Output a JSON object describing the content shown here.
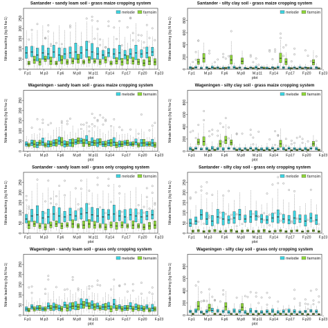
{
  "colors": {
    "melodie": "#3dd4e0",
    "farmsim": "#8ed63a",
    "outlier": "#666666",
    "axis": "#222222"
  },
  "legend": {
    "melodie": "melodie",
    "farmsim": "farmsim"
  },
  "chart_data": [
    {
      "type": "box",
      "title": "Santander - sandy loam soil - grass maize cropping system",
      "xlabel": "plot",
      "ylabel": "Nitrate leaching (kg N ha-1)",
      "ylim": [
        0,
        300
      ],
      "yticks": [
        0,
        50,
        100,
        150,
        200,
        250
      ],
      "xticks": [
        "F.p1",
        "M.p3",
        "F.p6",
        "M.p8",
        "M.p11",
        "F.p14",
        "F.p17",
        "F.p20",
        "F.p23"
      ],
      "series": [
        {
          "name": "melodie",
          "medians": [
            80,
            85,
            70,
            80,
            75,
            85,
            70,
            75,
            80,
            85,
            80,
            95,
            85,
            75,
            70,
            80,
            75,
            80,
            70,
            75,
            80,
            75,
            80,
            85
          ]
        },
        {
          "name": "farmsim",
          "medians": [
            30,
            45,
            35,
            50,
            40,
            30,
            45,
            35,
            40,
            50,
            35,
            45,
            40,
            35,
            45,
            30,
            40,
            35,
            45,
            40,
            35,
            30,
            40,
            35
          ]
        }
      ]
    },
    {
      "type": "box",
      "title": "Santander - silty clay soil - grass maize cropping system",
      "xlabel": "plot",
      "ylabel": "Nitrate leaching (kg N ha-1)",
      "ylim": [
        0,
        1000
      ],
      "yticks": [
        0,
        200,
        400,
        600,
        800
      ],
      "xticks": [
        "F.p1",
        "M.p3",
        "F.p6",
        "M.p8",
        "M.p11",
        "F.p14",
        "F.p17",
        "F.p20",
        "F.p23"
      ],
      "series": [
        {
          "name": "melodie",
          "medians": [
            25,
            30,
            20,
            25,
            30,
            25,
            20,
            25,
            30,
            25,
            20,
            25,
            30,
            25,
            20,
            25,
            30,
            25,
            20,
            25,
            30,
            25,
            20,
            25
          ]
        },
        {
          "name": "farmsim",
          "medians": [
            15,
            120,
            180,
            10,
            15,
            10,
            20,
            150,
            15,
            130,
            10,
            15,
            10,
            20,
            10,
            15,
            180,
            120,
            15,
            10,
            15,
            20,
            110,
            15
          ]
        }
      ]
    },
    {
      "type": "box",
      "title": "Wageningen - sandy loam soil - grass maize cropping system",
      "xlabel": "plot",
      "ylabel": "Nitrate leaching (kg N ha-1)",
      "ylim": [
        0,
        300
      ],
      "yticks": [
        0,
        50,
        100,
        150,
        200,
        250
      ],
      "xticks": [
        "F.p1",
        "M.p3",
        "F.p6",
        "M.p8",
        "M.p11",
        "F.p14",
        "F.p17",
        "F.p20",
        "F.p23"
      ],
      "series": [
        {
          "name": "melodie",
          "medians": [
            35,
            40,
            30,
            45,
            35,
            40,
            50,
            35,
            40,
            45,
            50,
            55,
            45,
            40,
            35,
            40,
            45,
            35,
            40,
            35,
            45,
            40,
            35,
            40
          ]
        },
        {
          "name": "farmsim",
          "medians": [
            30,
            35,
            40,
            30,
            35,
            40,
            45,
            35,
            40,
            50,
            40,
            35,
            40,
            45,
            35,
            40,
            30,
            35,
            40,
            35,
            30,
            40,
            35,
            30
          ]
        }
      ]
    },
    {
      "type": "box",
      "title": "Wageningen - silty clay soil - grass maize cropping system",
      "xlabel": "plot",
      "ylabel": "Nitrate leaching (kg N ha-1)",
      "ylim": [
        0,
        1000
      ],
      "yticks": [
        0,
        200,
        400,
        600,
        800
      ],
      "xticks": [
        "F.p1",
        "M.p3",
        "F.p6",
        "M.p8",
        "M.p11",
        "F.p14",
        "F.p17",
        "F.p20",
        "F.p23"
      ],
      "series": [
        {
          "name": "melodie",
          "medians": [
            40,
            45,
            35,
            40,
            50,
            40,
            35,
            45,
            40,
            35,
            40,
            45,
            40,
            35,
            40,
            45,
            35,
            40,
            45,
            40,
            35,
            40,
            45,
            40
          ]
        },
        {
          "name": "farmsim",
          "medians": [
            20,
            150,
            160,
            15,
            20,
            120,
            180,
            140,
            20,
            15,
            20,
            15,
            20,
            15,
            20,
            15,
            120,
            20,
            15,
            20,
            15,
            20,
            120,
            20
          ]
        }
      ]
    },
    {
      "type": "box",
      "title": "Santander - sandy loam soil - grass only cropping system",
      "xlabel": "plot",
      "ylabel": "Nitrate leaching (kg N ha-1)",
      "ylim": [
        0,
        300
      ],
      "yticks": [
        0,
        50,
        100,
        150,
        200,
        250
      ],
      "xticks": [
        "F.p1",
        "M.p3",
        "F.p6",
        "M.p8",
        "M.p11",
        "F.p14",
        "F.p17",
        "F.p20",
        "F.p23"
      ],
      "series": [
        {
          "name": "melodie",
          "medians": [
            70,
            85,
            90,
            75,
            80,
            95,
            85,
            80,
            90,
            85,
            95,
            100,
            90,
            85,
            80,
            90,
            95,
            85,
            80,
            90,
            85,
            80,
            85,
            90
          ]
        },
        {
          "name": "farmsim",
          "medians": [
            40,
            45,
            35,
            30,
            40,
            45,
            35,
            40,
            45,
            35,
            40,
            45,
            40,
            35,
            30,
            40,
            35,
            40,
            35,
            40,
            35,
            30,
            35,
            40
          ]
        }
      ]
    },
    {
      "type": "box",
      "title": "Santander - silty clay soil - grass only cropping system",
      "xlabel": "plot",
      "ylabel": "Nitrate leaching (kg N ha-1)",
      "ylim": [
        0,
        300
      ],
      "yticks": [
        0,
        50,
        100,
        150,
        200,
        250
      ],
      "xticks": [
        "F.p1",
        "M.p3",
        "F.p6",
        "M.p8",
        "M.p11",
        "F.p14",
        "F.p17",
        "F.p20",
        "F.p23"
      ],
      "series": [
        {
          "name": "melodie",
          "medians": [
            50,
            60,
            90,
            70,
            60,
            80,
            70,
            65,
            75,
            90,
            70,
            80,
            85,
            70,
            65,
            75,
            80,
            70,
            65,
            75,
            70,
            60,
            75,
            65
          ]
        },
        {
          "name": "farmsim",
          "medians": [
            10,
            12,
            8,
            10,
            12,
            8,
            10,
            12,
            8,
            10,
            12,
            8,
            10,
            12,
            8,
            10,
            12,
            8,
            10,
            12,
            8,
            10,
            12,
            8
          ]
        }
      ]
    },
    {
      "type": "box",
      "title": "Wageningen - sandy loam soil - grass only cropping system",
      "xlabel": "plot",
      "ylabel": "Nitrate leaching (kg N ha-1)",
      "ylim": [
        0,
        300
      ],
      "yticks": [
        0,
        50,
        100,
        150,
        200,
        250
      ],
      "xticks": [
        "F.p1",
        "M.p3",
        "F.p6",
        "M.p8",
        "M.p11",
        "F.p14",
        "F.p17",
        "F.p20",
        "F.p23"
      ],
      "series": [
        {
          "name": "melodie",
          "medians": [
            30,
            40,
            35,
            30,
            45,
            40,
            35,
            50,
            40,
            45,
            55,
            60,
            50,
            45,
            40,
            45,
            55,
            40,
            35,
            45,
            40,
            35,
            40,
            35
          ]
        },
        {
          "name": "farmsim",
          "medians": [
            25,
            30,
            35,
            30,
            35,
            40,
            30,
            35,
            45,
            40,
            50,
            45,
            40,
            35,
            40,
            30,
            35,
            30,
            35,
            30,
            35,
            30,
            25,
            30
          ]
        }
      ]
    },
    {
      "type": "box",
      "title": "Wageningen - silty clay soil - grass only cropping system",
      "xlabel": "plot",
      "ylabel": "Nitrate leaching (kg N ha-1)",
      "ylim": [
        0,
        1000
      ],
      "yticks": [
        0,
        200,
        400,
        600,
        800
      ],
      "xticks": [
        "F.p1",
        "M.p3",
        "F.p6",
        "M.p8",
        "M.p11",
        "F.p14",
        "F.p17",
        "F.p20",
        "F.p23"
      ],
      "series": [
        {
          "name": "melodie",
          "medians": [
            60,
            70,
            50,
            60,
            80,
            70,
            60,
            50,
            70,
            60,
            50,
            70,
            60,
            50,
            60,
            70,
            50,
            60,
            70,
            60,
            50,
            60,
            70,
            60
          ]
        },
        {
          "name": "farmsim",
          "medians": [
            20,
            150,
            20,
            120,
            20,
            15,
            140,
            20,
            15,
            130,
            20,
            15,
            20,
            15,
            20,
            15,
            20,
            15,
            20,
            15,
            20,
            15,
            20,
            15
          ]
        }
      ]
    }
  ]
}
